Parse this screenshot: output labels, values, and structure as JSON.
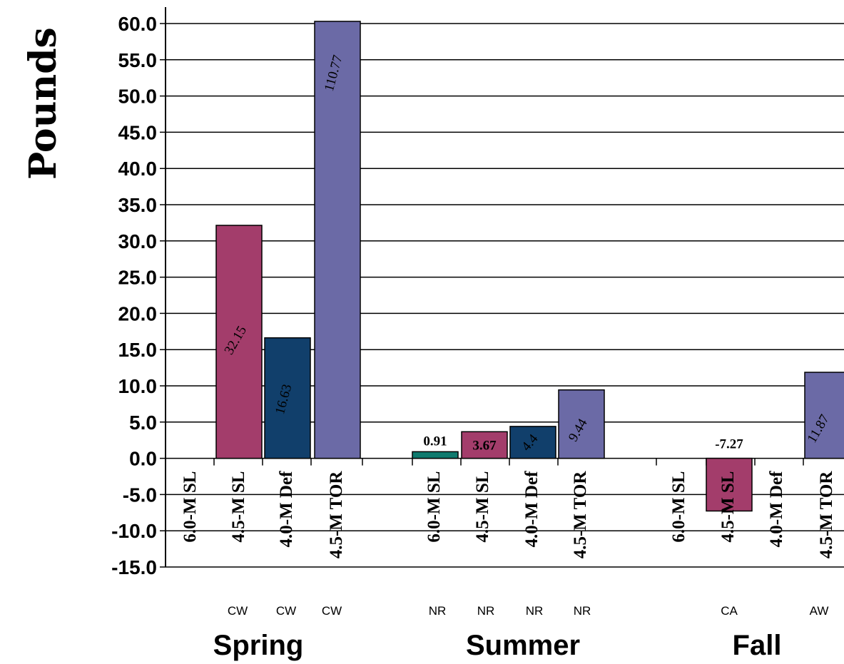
{
  "chart_data": {
    "type": "bar",
    "ylabel": "Pounds",
    "ylim": [
      -15,
      60
    ],
    "yticks": [
      "60.0",
      "55.0",
      "50.0",
      "45.0",
      "40.0",
      "35.0",
      "30.0",
      "25.0",
      "20.0",
      "15.0",
      "10.0",
      "5.0",
      "0.0",
      "-5.0",
      "-10.0",
      "-15.0"
    ],
    "grid": true,
    "groups": [
      {
        "name": "Spring",
        "bars": [
          {
            "category": "6.0-M SL",
            "sub": "",
            "value": null,
            "label": "",
            "color": "#4fa39a"
          },
          {
            "category": "4.5-M SL",
            "sub": "CW",
            "value": 32.15,
            "label": "32.15",
            "color": "#a33d6b"
          },
          {
            "category": "4.0-M Def",
            "sub": "CW",
            "value": 16.63,
            "label": "16.63",
            "color": "#113f6b"
          },
          {
            "category": "4.5-M TOR",
            "sub": "CW",
            "value": 110.77,
            "label": "110.77",
            "color": "#6b6aa6"
          }
        ]
      },
      {
        "name": "Summer",
        "bars": [
          {
            "category": "6.0-M SL",
            "sub": "NR",
            "value": 0.91,
            "label": "0.91",
            "color": "#0f7a6e"
          },
          {
            "category": "4.5-M SL",
            "sub": "NR",
            "value": 3.67,
            "label": "3.67",
            "color": "#a33d6b"
          },
          {
            "category": "4.0-M Def",
            "sub": "NR",
            "value": 4.4,
            "label": "4.4",
            "color": "#113f6b"
          },
          {
            "category": "4.5-M TOR",
            "sub": "NR",
            "value": 9.44,
            "label": "9.44",
            "color": "#6b6aa6"
          }
        ]
      },
      {
        "name": "Fall",
        "bars": [
          {
            "category": "6.0-M SL",
            "sub": "",
            "value": null,
            "label": "",
            "color": "#0f7a6e"
          },
          {
            "category": "4.5-M SL",
            "sub": "CA",
            "value": -7.27,
            "label": "-7.27",
            "color": "#a33d6b"
          },
          {
            "category": "4.0-M Def",
            "sub": "",
            "value": null,
            "label": "",
            "color": "#113f6b"
          },
          {
            "category": "4.5-M TOR",
            "sub": "AW",
            "value": 11.87,
            "label": "11.87",
            "color": "#6b6aa6"
          }
        ]
      }
    ]
  }
}
